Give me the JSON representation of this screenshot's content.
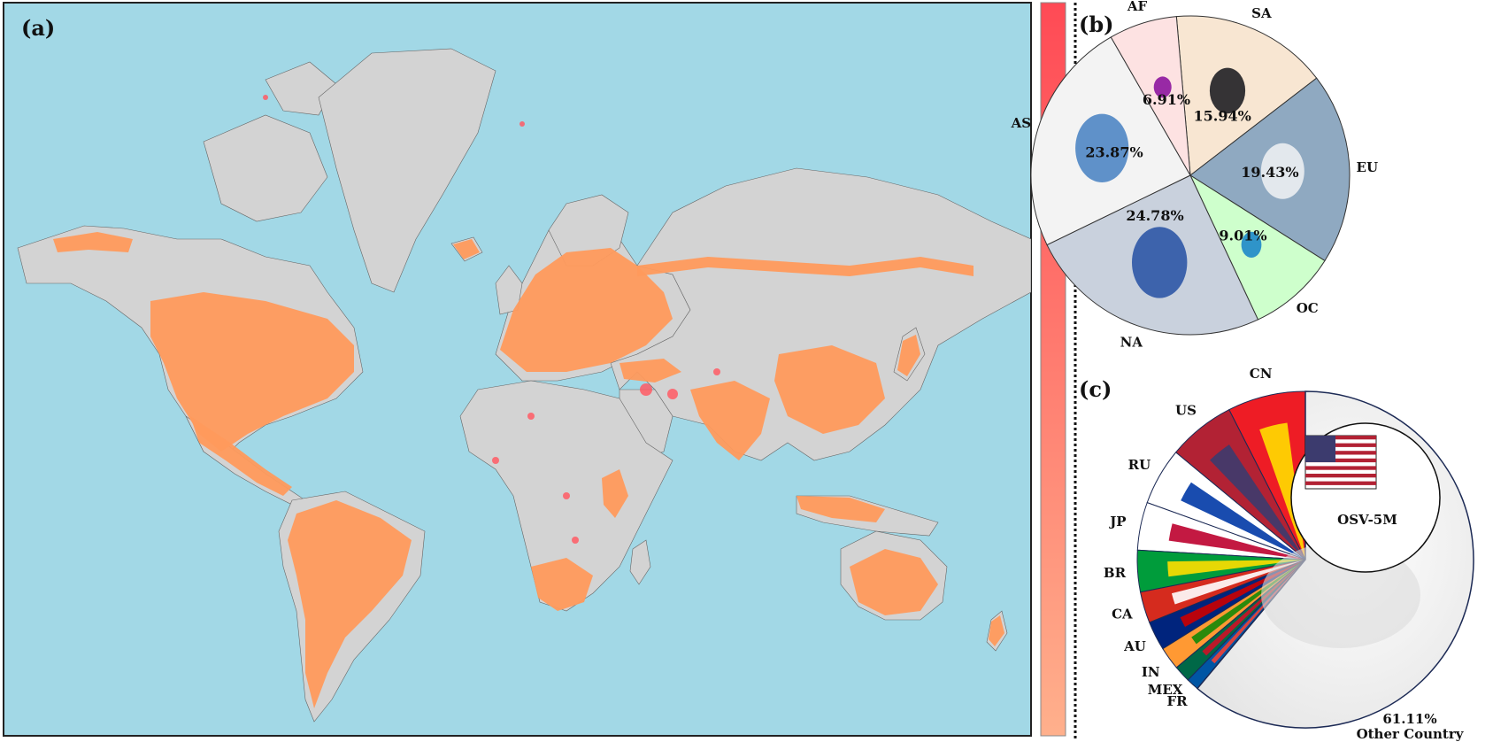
{
  "panels": {
    "a": {
      "label": "(a)"
    },
    "b": {
      "label": "(b)"
    },
    "c": {
      "label": "(c)"
    }
  },
  "colors": {
    "ocean": "#a2d8e6",
    "land": "#d3d3d3",
    "coverage": "#ff9a5c",
    "hotspot": "#ff5a64",
    "colorbar_top": "#ff4a55",
    "colorbar_bottom": "#ffb08c",
    "border": "#222222"
  },
  "chart_data": [
    {
      "type": "pie",
      "panel": "b",
      "labels": [
        "SA",
        "EU",
        "OC",
        "NA",
        "AS",
        "AF"
      ],
      "values": [
        15.94,
        19.43,
        9.01,
        24.78,
        23.87,
        6.91
      ],
      "value_labels": [
        "15.94%",
        "19.43%",
        "9.01%",
        "24.78%",
        "23.87%",
        "6.91%"
      ],
      "colors": [
        "#f8e6d2",
        "#8fa9c1",
        "#ceffcc",
        "#c9d1dd",
        "#f3f3f3",
        "#fde2e2"
      ],
      "icon_colors": [
        "#1f1f24",
        "#eceef2",
        "#1e88c9",
        "#2d56a6",
        "#4f86c4",
        "#8d159e"
      ],
      "icons": [
        "south-america-icon",
        "europe-icon",
        "australia-icon",
        "north-america-icon",
        "asia-icon",
        "africa-icon"
      ]
    },
    {
      "type": "pie",
      "panel": "c",
      "labels": [
        "CN",
        "US",
        "RU",
        "JP",
        "BR",
        "CA",
        "AU",
        "IN",
        "MEX",
        "FR",
        "Other Country"
      ],
      "values": [
        7.5,
        6.5,
        5.5,
        4.6,
        4.0,
        3.0,
        2.8,
        2.2,
        1.6,
        1.2,
        61.11
      ],
      "value_labels": {
        "Other Country": "61.11%"
      },
      "flags": [
        "cn-flag",
        "us-flag",
        "ru-flag",
        "jp-flag",
        "br-flag",
        "ca-flag",
        "au-flag",
        "in-flag",
        "mex-flag",
        "fr-flag",
        "world-map"
      ],
      "inset_label": "OSV-5M",
      "inset_flag": "us-flag-icon"
    }
  ]
}
